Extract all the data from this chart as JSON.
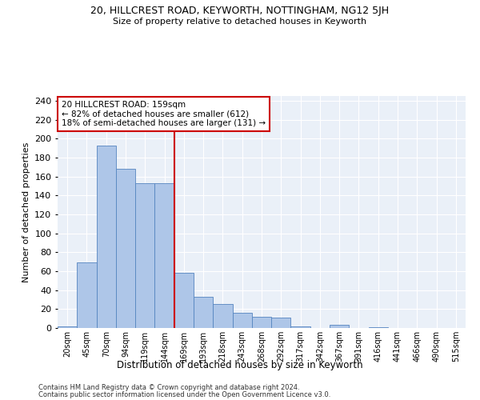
{
  "title1": "20, HILLCREST ROAD, KEYWORTH, NOTTINGHAM, NG12 5JH",
  "title2": "Size of property relative to detached houses in Keyworth",
  "xlabel": "Distribution of detached houses by size in Keyworth",
  "ylabel": "Number of detached properties",
  "footnote1": "Contains HM Land Registry data © Crown copyright and database right 2024.",
  "footnote2": "Contains public sector information licensed under the Open Government Licence v3.0.",
  "annotation_line1": "20 HILLCREST ROAD: 159sqm",
  "annotation_line2": "← 82% of detached houses are smaller (612)",
  "annotation_line3": "18% of semi-detached houses are larger (131) →",
  "bar_color": "#aec6e8",
  "bar_edge_color": "#5585c0",
  "ref_line_color": "#cc0000",
  "categories": [
    "20sqm",
    "45sqm",
    "70sqm",
    "94sqm",
    "119sqm",
    "144sqm",
    "169sqm",
    "193sqm",
    "218sqm",
    "243sqm",
    "268sqm",
    "292sqm",
    "317sqm",
    "342sqm",
    "367sqm",
    "391sqm",
    "416sqm",
    "441sqm",
    "466sqm",
    "490sqm",
    "515sqm"
  ],
  "values": [
    2,
    69,
    193,
    168,
    153,
    153,
    58,
    33,
    25,
    16,
    12,
    11,
    2,
    0,
    3,
    0,
    1,
    0,
    0,
    0,
    0
  ],
  "ylim": [
    0,
    245
  ],
  "yticks": [
    0,
    20,
    40,
    60,
    80,
    100,
    120,
    140,
    160,
    180,
    200,
    220,
    240
  ],
  "bg_color": "#eaf0f8",
  "grid_color": "#ffffff",
  "box_color": "#cc0000"
}
